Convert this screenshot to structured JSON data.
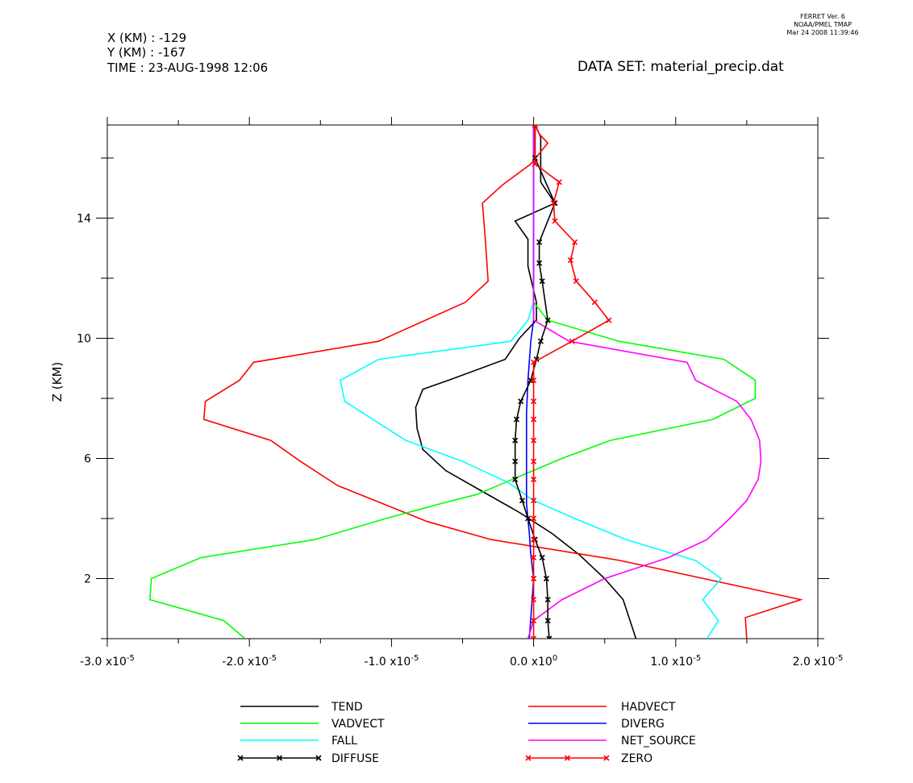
{
  "header": {
    "x_label": "X (KM) : -129",
    "y_label": "Y (KM) : -167",
    "time_label": "TIME : 23-AUG-1998 12:06",
    "dataset_label": "DATA SET: material_precip.dat",
    "credit_line1": "FERRET Ver. 6",
    "credit_line2": "NOAA/PMEL TMAP",
    "credit_line3": "Mar 24 2008 11:39:46"
  },
  "chart_data": {
    "type": "line",
    "ylabel": "Z (KM)",
    "xlim": [
      -3e-05,
      2e-05
    ],
    "ylim": [
      0.0,
      17.1
    ],
    "x_ticks": [
      {
        "value": -3e-05,
        "label": "-3.0 x10",
        "exp": "-5"
      },
      {
        "value": -2e-05,
        "label": "-2.0 x10",
        "exp": "-5"
      },
      {
        "value": -1e-05,
        "label": "-1.0 x10",
        "exp": "-5"
      },
      {
        "value": 0.0,
        "label": "0.0 x10",
        "exp": "0"
      },
      {
        "value": 1e-05,
        "label": "1.0 x10",
        "exp": "-5"
      },
      {
        "value": 2e-05,
        "label": "2.0 x10",
        "exp": "-5"
      }
    ],
    "x_minor_step": 5e-06,
    "y_ticks": [
      2,
      6,
      10,
      14
    ],
    "y_minor_step": 2,
    "legend_position": "bottom",
    "series": [
      {
        "name": "TEND",
        "color": "#000000",
        "marker": false,
        "x": [
          7.2e-06,
          6.3e-06,
          5e-06,
          3.2e-06,
          1.3e-06,
          -1e-06,
          -3.6e-06,
          -6.2e-06,
          -7.8e-06,
          -8.2e-06,
          -8.3e-06,
          -7.8e-06,
          -6e-06,
          -2e-06,
          -1e-06,
          2e-07,
          2e-07,
          -4e-07,
          -4e-07,
          -1.3e-06,
          1.5e-06,
          5e-07,
          5e-07,
          1e-07
        ],
        "y": [
          0.0,
          1.3,
          2.0,
          2.8,
          3.5,
          4.2,
          4.9,
          5.6,
          6.3,
          7.0,
          7.7,
          8.3,
          8.6,
          9.3,
          10.0,
          10.6,
          11.2,
          12.4,
          13.3,
          13.9,
          14.5,
          15.2,
          16.7,
          17.1
        ]
      },
      {
        "name": "HADVECT",
        "color": "#ff0000",
        "marker": false,
        "x": [
          1.5e-05,
          1.49e-05,
          1.88e-05,
          6.1e-06,
          -3e-06,
          -7.5e-06,
          -1.38e-05,
          -1.64e-05,
          -1.85e-05,
          -2.32e-05,
          -2.31e-05,
          -2.07e-05,
          -1.97e-05,
          -1.09e-05,
          -4.8e-06,
          -3.2e-06,
          -3.4e-06,
          -3.6e-06,
          -2.2e-06,
          -2e-07,
          1e-06,
          4e-07,
          1e-07
        ],
        "y": [
          0.0,
          0.7,
          1.3,
          2.6,
          3.3,
          3.9,
          5.1,
          5.9,
          6.6,
          7.3,
          7.9,
          8.6,
          9.2,
          9.9,
          11.2,
          11.9,
          13.3,
          14.5,
          15.1,
          15.8,
          16.5,
          16.8,
          17.1
        ]
      },
      {
        "name": "VADVECT",
        "color": "#00ff00",
        "marker": false,
        "x": [
          -2.03e-05,
          -2.18e-05,
          -2.7e-05,
          -2.69e-05,
          -2.34e-05,
          -1.54e-05,
          -1.04e-05,
          -6.5e-06,
          -4e-06,
          -2e-06,
          0.0,
          2e-06,
          5.4e-06,
          1.26e-05,
          1.56e-05,
          1.56e-05,
          1.34e-05,
          6e-06,
          1e-06,
          1e-06,
          0.0,
          0.0,
          0.0,
          0.0
        ],
        "y": [
          0.0,
          0.6,
          1.3,
          2.0,
          2.7,
          3.3,
          4.0,
          4.5,
          4.8,
          5.2,
          5.6,
          6.0,
          6.6,
          7.3,
          8.0,
          8.6,
          9.3,
          9.9,
          10.6,
          10.6,
          11.2,
          13.0,
          15.8,
          17.1
        ]
      },
      {
        "name": "FALL",
        "color": "#00ffff",
        "marker": false,
        "x": [
          1.22e-05,
          1.3e-05,
          1.19e-05,
          1.32e-05,
          1.14e-05,
          6.5e-06,
          2.9e-06,
          0.0,
          -1.8e-06,
          -5e-06,
          -9e-06,
          -1.33e-05,
          -1.36e-05,
          -1.09e-05,
          -1.6e-06,
          -4e-07,
          0.0,
          0.0,
          0.0,
          0.0
        ],
        "y": [
          0.0,
          0.6,
          1.3,
          2.0,
          2.6,
          3.3,
          4.0,
          4.6,
          5.2,
          5.9,
          6.6,
          7.9,
          8.6,
          9.3,
          9.9,
          10.6,
          11.2,
          13.0,
          15.8,
          17.1
        ]
      },
      {
        "name": "DIVERG",
        "color": "#0000ff",
        "marker": false,
        "x": [
          -3e-07,
          -1e-07,
          0.0,
          -2e-07,
          -3e-07,
          -5e-07,
          -5e-07,
          -5e-07,
          -4e-07,
          -2e-07,
          0.0,
          0.0,
          0.0
        ],
        "y": [
          0.0,
          1.3,
          2.0,
          2.8,
          3.5,
          4.5,
          6.0,
          7.5,
          8.6,
          9.9,
          10.6,
          13.0,
          17.1
        ]
      },
      {
        "name": "NET_SOURCE",
        "color": "#ff00ff",
        "marker": false,
        "x": [
          -4e-07,
          0.0,
          2e-06,
          5e-06,
          9.5e-06,
          1.22e-05,
          1.38e-05,
          1.5e-05,
          1.58e-05,
          1.6e-05,
          1.59e-05,
          1.53e-05,
          1.43e-05,
          1.14e-05,
          1.08e-05,
          2.5e-06,
          0.0,
          0.0,
          0.0,
          0.0
        ],
        "y": [
          0.0,
          0.6,
          1.3,
          2.0,
          2.7,
          3.3,
          4.0,
          4.6,
          5.3,
          5.9,
          6.6,
          7.3,
          7.9,
          8.6,
          9.2,
          9.9,
          10.6,
          11.2,
          13.0,
          17.1
        ]
      },
      {
        "name": "DIFFUSE",
        "color": "#000000",
        "marker": true,
        "x": [
          1.1e-06,
          1e-06,
          1e-06,
          9e-07,
          6e-07,
          1e-07,
          -4e-07,
          -8e-07,
          -1.3e-06,
          -1.3e-06,
          -1.3e-06,
          -1.2e-06,
          -9e-07,
          -2e-07,
          2e-07,
          5e-07,
          1e-06,
          6e-07,
          4e-07,
          4e-07,
          1.5e-06,
          1e-07,
          1e-07
        ],
        "y": [
          0.0,
          0.6,
          1.3,
          2.0,
          2.7,
          3.3,
          4.0,
          4.6,
          5.3,
          5.9,
          6.6,
          7.3,
          7.9,
          8.6,
          9.3,
          9.9,
          10.6,
          11.9,
          12.5,
          13.2,
          14.5,
          16.0,
          17.1
        ]
      },
      {
        "name": "ZERO",
        "color": "#ff0000",
        "marker": true,
        "x": [
          0.0,
          0.0,
          0.0,
          0.0,
          0.0,
          0.0,
          0.0,
          0.0,
          0.0,
          0.0,
          0.0,
          0.0,
          0.0,
          0.0,
          0.0,
          2.7e-06,
          5.3e-06,
          4.3e-06,
          3e-06,
          2.6e-06,
          2.9e-06,
          1.5e-06,
          1.4e-06,
          1.8e-06,
          1e-07,
          1e-07
        ],
        "y": [
          0.0,
          0.6,
          1.3,
          2.0,
          2.7,
          3.3,
          4.0,
          4.6,
          5.3,
          5.9,
          6.6,
          7.3,
          7.9,
          8.6,
          9.2,
          9.9,
          10.6,
          11.2,
          11.9,
          12.6,
          13.2,
          13.9,
          14.5,
          15.2,
          15.8,
          17.1
        ]
      }
    ]
  }
}
